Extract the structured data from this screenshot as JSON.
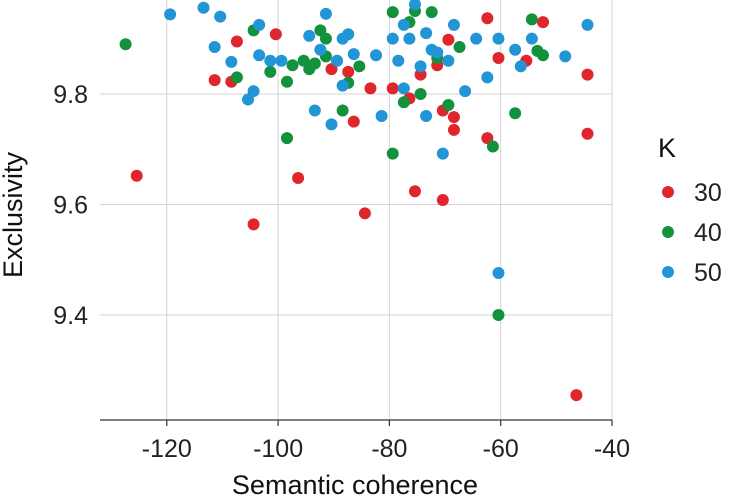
{
  "chart_data": {
    "type": "scatter",
    "title": "",
    "xlabel": "Semantic coherence",
    "ylabel": "Exclusivity",
    "xlim": [
      -132,
      -40
    ],
    "ylim": [
      9.21,
      9.97
    ],
    "xticks": [
      -120,
      -100,
      -80,
      -60,
      -40
    ],
    "yticks": [
      9.4,
      9.6,
      9.8
    ],
    "x_tick_labels": [
      "-120",
      "-100",
      "-80",
      "-60",
      "-40"
    ],
    "y_tick_labels": [
      "9.4",
      "9.6",
      "9.8"
    ],
    "grid": true,
    "legend": {
      "title": "K",
      "placement": "right",
      "entries": [
        {
          "label": "30",
          "color": "#e0262d"
        },
        {
          "label": "40",
          "color": "#13923e"
        },
        {
          "label": "50",
          "color": "#2195d6"
        }
      ]
    },
    "series": [
      {
        "name": "30",
        "color": "#e0262d",
        "points": [
          [
            -125.4,
            9.652
          ],
          [
            -111.4,
            9.825
          ],
          [
            -108.4,
            9.822
          ],
          [
            -107.4,
            9.895
          ],
          [
            -104.4,
            9.564
          ],
          [
            -100.4,
            9.908
          ],
          [
            -96.4,
            9.648
          ],
          [
            -90.4,
            9.845
          ],
          [
            -87.4,
            9.84
          ],
          [
            -86.4,
            9.75
          ],
          [
            -84.4,
            9.584
          ],
          [
            -83.4,
            9.81
          ],
          [
            -79.4,
            9.81
          ],
          [
            -76.4,
            9.792
          ],
          [
            -75.4,
            9.624
          ],
          [
            -74.4,
            9.835
          ],
          [
            -71.4,
            9.852
          ],
          [
            -70.4,
            9.608
          ],
          [
            -70.4,
            9.77
          ],
          [
            -69.4,
            9.898
          ],
          [
            -68.4,
            9.758
          ],
          [
            -68.4,
            9.735
          ],
          [
            -62.4,
            9.72
          ],
          [
            -62.4,
            9.937
          ],
          [
            -60.4,
            9.865
          ],
          [
            -55.4,
            9.86
          ],
          [
            -52.4,
            9.93
          ],
          [
            -46.4,
            9.255
          ],
          [
            -44.4,
            9.835
          ],
          [
            -44.4,
            9.728
          ]
        ]
      },
      {
        "name": "40",
        "color": "#13923e",
        "points": [
          [
            -127.4,
            9.89
          ],
          [
            -107.4,
            9.83
          ],
          [
            -104.4,
            9.915
          ],
          [
            -101.4,
            9.84
          ],
          [
            -98.4,
            9.72
          ],
          [
            -98.4,
            9.822
          ],
          [
            -97.4,
            9.852
          ],
          [
            -95.4,
            9.86
          ],
          [
            -94.4,
            9.845
          ],
          [
            -93.4,
            9.855
          ],
          [
            -92.4,
            9.915
          ],
          [
            -91.4,
            9.9
          ],
          [
            -91.4,
            9.868
          ],
          [
            -88.4,
            9.77
          ],
          [
            -87.4,
            9.82
          ],
          [
            -85.4,
            9.85
          ],
          [
            -79.4,
            9.948
          ],
          [
            -79.4,
            9.692
          ],
          [
            -77.4,
            9.785
          ],
          [
            -76.4,
            9.93
          ],
          [
            -75.4,
            9.95
          ],
          [
            -74.4,
            9.8
          ],
          [
            -72.4,
            9.948
          ],
          [
            -71.4,
            9.865
          ],
          [
            -69.4,
            9.78
          ],
          [
            -67.4,
            9.885
          ],
          [
            -61.4,
            9.705
          ],
          [
            -60.4,
            9.4
          ],
          [
            -57.4,
            9.765
          ],
          [
            -54.4,
            9.935
          ],
          [
            -53.4,
            9.878
          ],
          [
            -52.4,
            9.87
          ]
        ]
      },
      {
        "name": "50",
        "color": "#2195d6",
        "points": [
          [
            -119.4,
            9.944
          ],
          [
            -113.4,
            9.956
          ],
          [
            -111.4,
            9.885
          ],
          [
            -110.4,
            9.94
          ],
          [
            -108.4,
            9.858
          ],
          [
            -105.4,
            9.79
          ],
          [
            -104.4,
            9.805
          ],
          [
            -103.4,
            9.925
          ],
          [
            -103.4,
            9.87
          ],
          [
            -101.4,
            9.86
          ],
          [
            -99.4,
            9.86
          ],
          [
            -94.4,
            9.905
          ],
          [
            -93.4,
            9.77
          ],
          [
            -92.4,
            9.88
          ],
          [
            -91.4,
            9.945
          ],
          [
            -90.4,
            9.745
          ],
          [
            -89.4,
            9.86
          ],
          [
            -88.4,
            9.815
          ],
          [
            -88.4,
            9.9
          ],
          [
            -87.4,
            9.908
          ],
          [
            -86.4,
            9.872
          ],
          [
            -82.4,
            9.87
          ],
          [
            -81.4,
            9.76
          ],
          [
            -79.4,
            9.9
          ],
          [
            -78.4,
            9.86
          ],
          [
            -77.4,
            9.925
          ],
          [
            -77.4,
            9.81
          ],
          [
            -76.4,
            9.9
          ],
          [
            -75.4,
            9.962
          ],
          [
            -74.4,
            9.85
          ],
          [
            -73.4,
            9.76
          ],
          [
            -73.4,
            9.91
          ],
          [
            -72.4,
            9.88
          ],
          [
            -71.4,
            9.875
          ],
          [
            -70.4,
            9.692
          ],
          [
            -69.4,
            9.86
          ],
          [
            -68.4,
            9.925
          ],
          [
            -66.4,
            9.805
          ],
          [
            -64.4,
            9.9
          ],
          [
            -62.4,
            9.83
          ],
          [
            -60.4,
            9.9
          ],
          [
            -60.4,
            9.476
          ],
          [
            -57.4,
            9.88
          ],
          [
            -56.4,
            9.85
          ],
          [
            -54.4,
            9.9
          ],
          [
            -48.4,
            9.868
          ],
          [
            -44.4,
            9.925
          ]
        ]
      }
    ]
  }
}
